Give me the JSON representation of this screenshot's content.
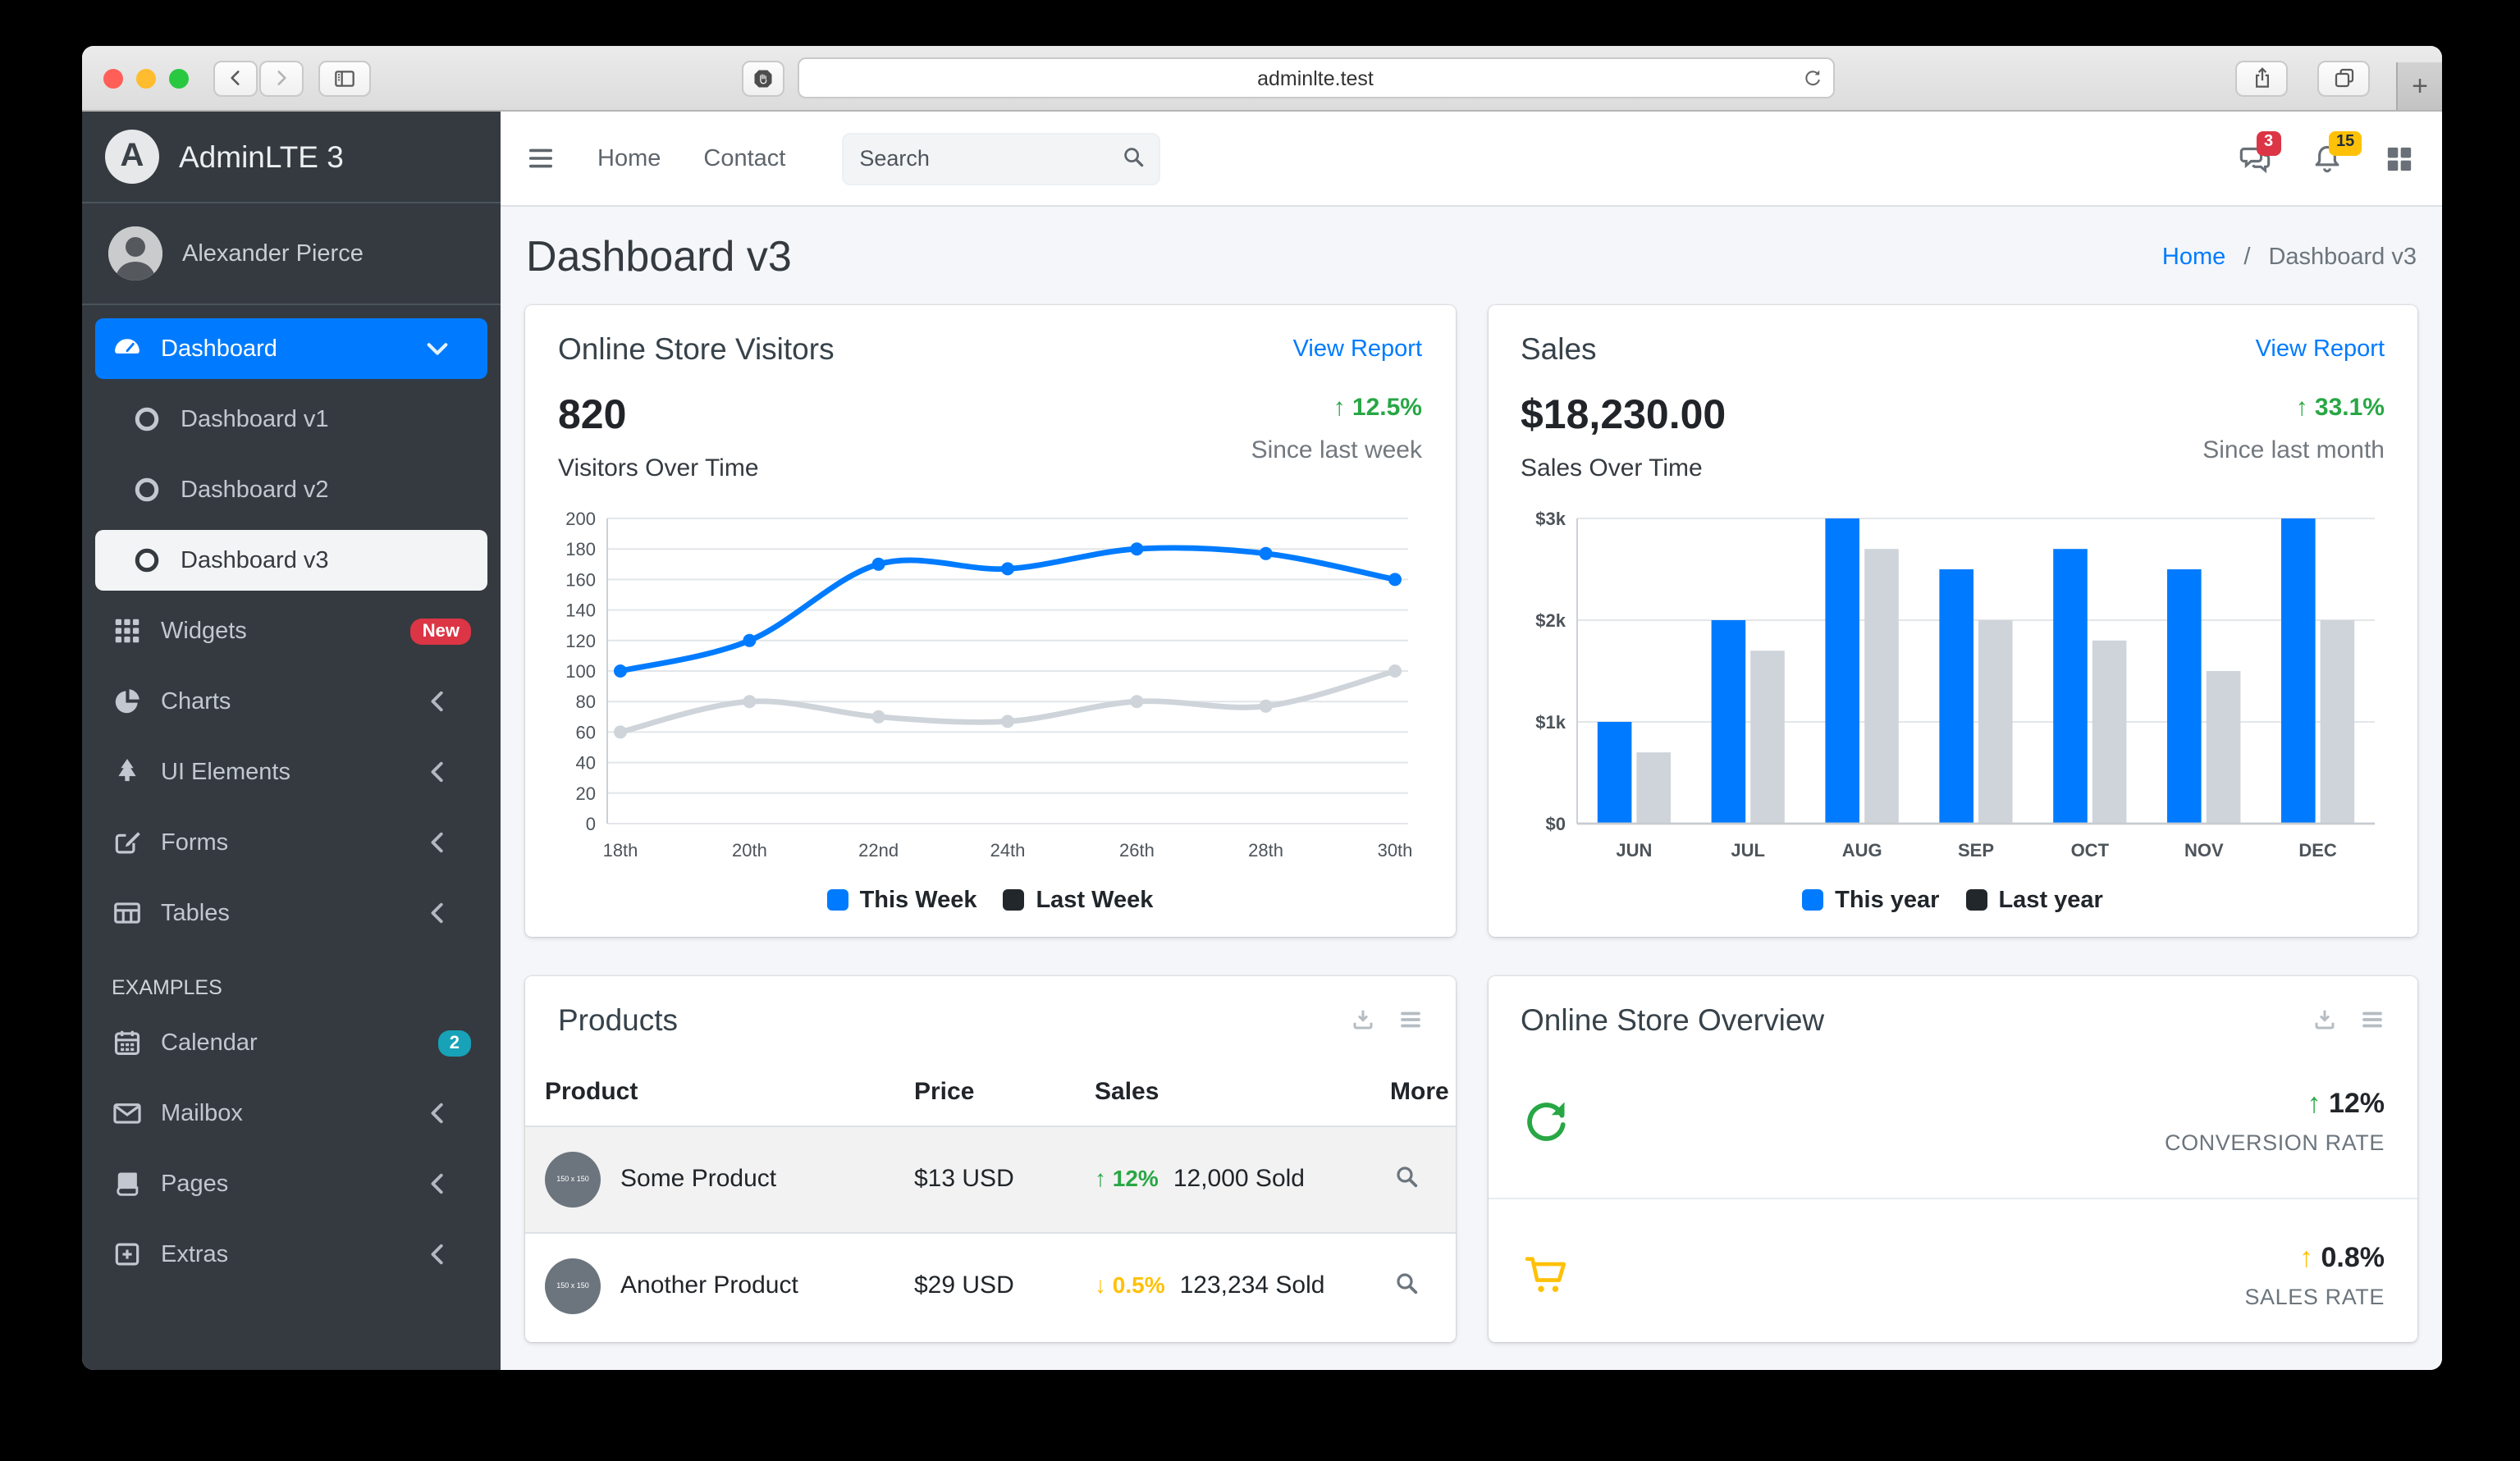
{
  "browser": {
    "url": "adminlte.test",
    "new_tab_label": "+"
  },
  "glyphs": {
    "up": "↑",
    "down": "↓",
    "sep": "/"
  },
  "colors": {
    "accent": "#007bff",
    "success": "#28a745",
    "warning": "#ffc107",
    "danger": "#dc3545",
    "info": "#17a2b8",
    "sidebar_bg": "#343a40",
    "content_bg": "#f4f6f9",
    "line_gray": "#ced4da",
    "legend_dark": "#22272c"
  },
  "sidebar": {
    "brand": "AdminLTE 3",
    "user": "Alexander Pierce",
    "items": [
      {
        "label": "Dashboard",
        "icon": "tachometer",
        "active": "blue",
        "chevron": "down"
      },
      {
        "label": "Dashboard v1",
        "icon": "circle",
        "indent": true
      },
      {
        "label": "Dashboard v2",
        "icon": "circle",
        "indent": true
      },
      {
        "label": "Dashboard v3",
        "icon": "circle",
        "indent": true,
        "active": "light"
      },
      {
        "label": "Widgets",
        "icon": "th-grid",
        "badge": {
          "text": "New",
          "bg": "#dc3545",
          "fg": "#ffffff"
        }
      },
      {
        "label": "Charts",
        "icon": "chart-pie",
        "chevron": "left"
      },
      {
        "label": "UI Elements",
        "icon": "tree",
        "chevron": "left"
      },
      {
        "label": "Forms",
        "icon": "edit",
        "chevron": "left"
      },
      {
        "label": "Tables",
        "icon": "table",
        "chevron": "left"
      },
      {
        "header": "EXAMPLES"
      },
      {
        "label": "Calendar",
        "icon": "calendar",
        "badge": {
          "text": "2",
          "bg": "#17a2b8",
          "fg": "#ffffff"
        }
      },
      {
        "label": "Mailbox",
        "icon": "envelope",
        "chevron": "left"
      },
      {
        "label": "Pages",
        "icon": "book",
        "chevron": "left"
      },
      {
        "label": "Extras",
        "icon": "plus-square",
        "chevron": "left"
      }
    ]
  },
  "navbar": {
    "links": [
      "Home",
      "Contact"
    ],
    "search_placeholder": "Search",
    "icons": [
      {
        "name": "comments",
        "badge": "3",
        "badge_bg": "#dc3545",
        "badge_fg": "#ffffff"
      },
      {
        "name": "bell",
        "badge": "15",
        "badge_bg": "#ffc107",
        "badge_fg": "#1f2d3d"
      },
      {
        "name": "th-large"
      }
    ]
  },
  "page": {
    "title": "Dashboard v3",
    "breadcrumb_home": "Home",
    "breadcrumb_current": "Dashboard v3"
  },
  "visitors_card": {
    "title": "Online Store Visitors",
    "action": "View Report",
    "metric": "820",
    "metric_label": "Visitors Over Time",
    "trend": "12.5%",
    "trend_dir": "up",
    "caption": "Since last week"
  },
  "sales_card": {
    "title": "Sales",
    "action": "View Report",
    "metric": "$18,230.00",
    "metric_label": "Sales Over Time",
    "trend": "33.1%",
    "trend_dir": "up",
    "caption": "Since last month"
  },
  "chart_data": [
    {
      "type": "line",
      "name": "visitors",
      "title": "Visitors Over Time",
      "x": [
        "18th",
        "20th",
        "22nd",
        "24th",
        "26th",
        "28th",
        "30th"
      ],
      "series": [
        {
          "name": "This Week",
          "color": "#007bff",
          "legend_color": "#007bff",
          "values": [
            100,
            120,
            170,
            167,
            180,
            177,
            160
          ]
        },
        {
          "name": "Last Week",
          "color": "#ced4da",
          "legend_color": "#22272c",
          "values": [
            60,
            80,
            70,
            67,
            80,
            77,
            100
          ]
        }
      ],
      "ylim": [
        0,
        200
      ],
      "ytick": 20,
      "grid": true,
      "legend_position": "bottom"
    },
    {
      "type": "bar",
      "name": "sales",
      "title": "Sales Over Time",
      "x": [
        "JUN",
        "JUL",
        "AUG",
        "SEP",
        "OCT",
        "NOV",
        "DEC"
      ],
      "series": [
        {
          "name": "This year",
          "color": "#007bff",
          "legend_color": "#007bff",
          "values": [
            1000,
            2000,
            3000,
            2500,
            2700,
            2500,
            3000
          ]
        },
        {
          "name": "Last year",
          "color": "#ced4da",
          "legend_color": "#22272c",
          "values": [
            700,
            1700,
            2700,
            2000,
            1800,
            1500,
            2000
          ]
        }
      ],
      "ylim": [
        0,
        3000
      ],
      "ytick": 1000,
      "ytick_prefix": "$",
      "ytick_suffix": "k",
      "grid": true,
      "legend_position": "bottom"
    }
  ],
  "products": {
    "title": "Products",
    "columns": [
      "Product",
      "Price",
      "Sales",
      "More"
    ],
    "rows": [
      {
        "name": "Some Product",
        "image_placeholder": "150 x 150",
        "price": "$13 USD",
        "trend": "12%",
        "trend_dir": "up",
        "sold": "12,000 Sold"
      },
      {
        "name": "Another Product",
        "image_placeholder": "150 x 150",
        "price": "$29 USD",
        "trend": "0.5%",
        "trend_dir": "down",
        "sold": "123,234 Sold"
      }
    ]
  },
  "overview": {
    "title": "Online Store Overview",
    "rows": [
      {
        "icon": "redo",
        "icon_color": "#28a745",
        "value": "12%",
        "dir": "up",
        "arrow_color": "#28a745",
        "label": "CONVERSION RATE"
      },
      {
        "icon": "cart",
        "icon_color": "#ffc107",
        "value": "0.8%",
        "dir": "up",
        "arrow_color": "#ffc107",
        "label": "SALES RATE"
      }
    ]
  }
}
